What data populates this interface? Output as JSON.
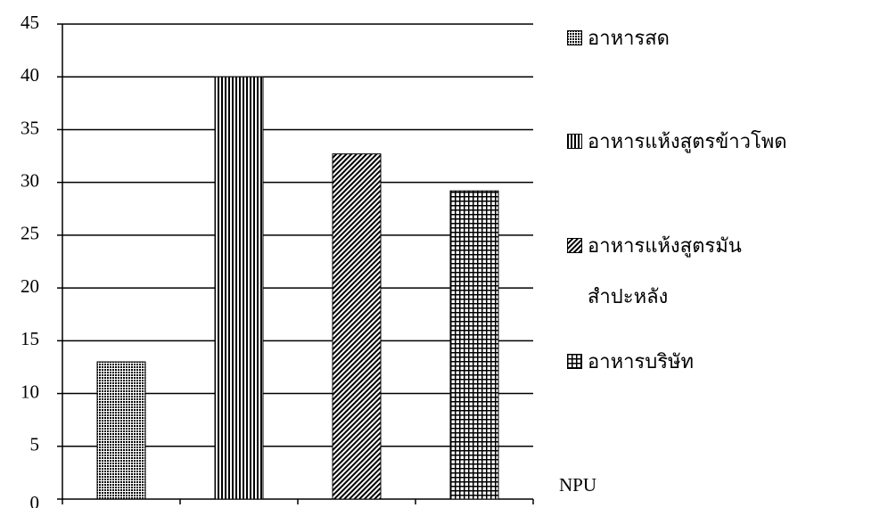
{
  "chart_data": {
    "type": "bar",
    "xlabel": "NPU",
    "series": [
      {
        "name": "อาหารสด",
        "color": "#000000",
        "pattern": "dots",
        "values": [
          13
        ]
      },
      {
        "name": "อาหารแห้งสูตรข้าวโพด",
        "color": "#000000",
        "pattern": "vertical",
        "values": [
          40
        ]
      },
      {
        "name": "อาหารแห้งสูตรมัน สำปะหลัง",
        "color": "#000000",
        "pattern": "diagonal",
        "values": [
          32.7
        ]
      },
      {
        "name": "อาหารบริษัท",
        "color": "#000000",
        "pattern": "grid",
        "values": [
          29.2
        ]
      }
    ],
    "ylim": [
      0,
      45
    ],
    "yticks": [
      0,
      5,
      10,
      15,
      20,
      25,
      30,
      35,
      40,
      45
    ],
    "grid": true
  }
}
